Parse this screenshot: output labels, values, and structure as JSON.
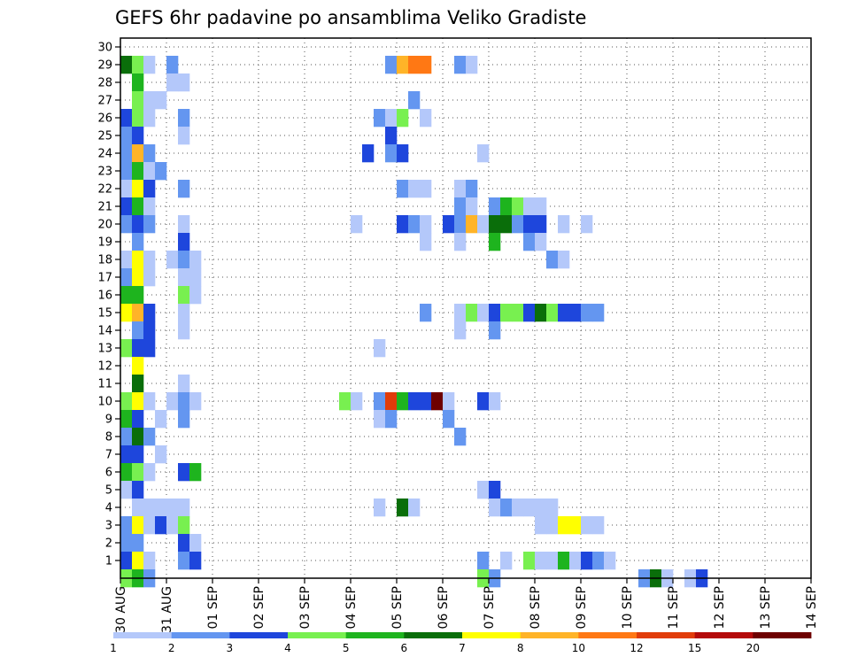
{
  "chart_data": {
    "type": "heatmap",
    "title": "GEFS 6hr padavine po ansamblima Veliko Gradiste",
    "xlabel": "",
    "ylabel": "",
    "x_tick_labels": [
      "30 AUG",
      "31 AUG",
      "01 SEP",
      "02 SEP",
      "03 SEP",
      "04 SEP",
      "05 SEP",
      "06 SEP",
      "07 SEP",
      "08 SEP",
      "09 SEP",
      "10 SEP",
      "11 SEP",
      "12 SEP",
      "13 SEP",
      "14 SEP"
    ],
    "y_range": [
      0,
      30
    ],
    "y_ticks": [
      1,
      2,
      3,
      4,
      5,
      6,
      7,
      8,
      9,
      10,
      11,
      12,
      13,
      14,
      15,
      16,
      17,
      18,
      19,
      20,
      21,
      22,
      23,
      24,
      25,
      26,
      27,
      28,
      29,
      30
    ],
    "x_steps_total": 60,
    "steps_per_day": 4,
    "grid": true,
    "colorbar": {
      "labels": [
        "1",
        "2",
        "3",
        "4",
        "5",
        "6",
        "7",
        "8",
        "10",
        "12",
        "15",
        "20"
      ],
      "colors": [
        "#b4c8fa",
        "#6496f0",
        "#1e46dc",
        "#78f050",
        "#1eb41e",
        "#0a6e0a",
        "#ffff00",
        "#ffb428",
        "#ff7814",
        "#e13c0a",
        "#b40a0a",
        "#6e0000"
      ]
    },
    "cells": [
      [
        0,
        29,
        5
      ],
      [
        1,
        29,
        3
      ],
      [
        2,
        29,
        0
      ],
      [
        4,
        29,
        1
      ],
      [
        23,
        29,
        1
      ],
      [
        24,
        29,
        7
      ],
      [
        25,
        29,
        8
      ],
      [
        26,
        29,
        8
      ],
      [
        29,
        29,
        1
      ],
      [
        30,
        29,
        0
      ],
      [
        1,
        28,
        4
      ],
      [
        4,
        28,
        0
      ],
      [
        5,
        28,
        0
      ],
      [
        1,
        27,
        3
      ],
      [
        2,
        27,
        0
      ],
      [
        3,
        27,
        0
      ],
      [
        25,
        27,
        1
      ],
      [
        0,
        26,
        2
      ],
      [
        1,
        26,
        3
      ],
      [
        2,
        26,
        0
      ],
      [
        5,
        26,
        1
      ],
      [
        22,
        26,
        1
      ],
      [
        23,
        26,
        0
      ],
      [
        24,
        26,
        3
      ],
      [
        26,
        26,
        0
      ],
      [
        0,
        25,
        1
      ],
      [
        1,
        25,
        2
      ],
      [
        5,
        25,
        0
      ],
      [
        23,
        25,
        2
      ],
      [
        0,
        24,
        1
      ],
      [
        1,
        24,
        7
      ],
      [
        2,
        24,
        1
      ],
      [
        21,
        24,
        2
      ],
      [
        23,
        24,
        1
      ],
      [
        24,
        24,
        2
      ],
      [
        31,
        24,
        0
      ],
      [
        0,
        23,
        1
      ],
      [
        1,
        23,
        4
      ],
      [
        2,
        23,
        0
      ],
      [
        3,
        23,
        1
      ],
      [
        0,
        22,
        0
      ],
      [
        1,
        22,
        6
      ],
      [
        2,
        22,
        2
      ],
      [
        5,
        22,
        1
      ],
      [
        26,
        22,
        0
      ],
      [
        24,
        22,
        1
      ],
      [
        25,
        22,
        0
      ],
      [
        29,
        22,
        0
      ],
      [
        30,
        22,
        1
      ],
      [
        0,
        21,
        2
      ],
      [
        1,
        21,
        4
      ],
      [
        2,
        21,
        0
      ],
      [
        29,
        21,
        1
      ],
      [
        30,
        21,
        0
      ],
      [
        32,
        21,
        1
      ],
      [
        33,
        21,
        4
      ],
      [
        34,
        21,
        3
      ],
      [
        35,
        21,
        0
      ],
      [
        36,
        21,
        0
      ],
      [
        0,
        20,
        1
      ],
      [
        1,
        20,
        2
      ],
      [
        2,
        20,
        1
      ],
      [
        5,
        20,
        0
      ],
      [
        20,
        20,
        0
      ],
      [
        24,
        20,
        2
      ],
      [
        25,
        20,
        1
      ],
      [
        26,
        20,
        0
      ],
      [
        28,
        20,
        2
      ],
      [
        29,
        20,
        1
      ],
      [
        30,
        20,
        7
      ],
      [
        31,
        20,
        0
      ],
      [
        32,
        20,
        5
      ],
      [
        33,
        20,
        5
      ],
      [
        34,
        20,
        1
      ],
      [
        35,
        20,
        2
      ],
      [
        36,
        20,
        2
      ],
      [
        38,
        20,
        0
      ],
      [
        40,
        20,
        0
      ],
      [
        1,
        19,
        1
      ],
      [
        5,
        19,
        2
      ],
      [
        26,
        19,
        0
      ],
      [
        29,
        19,
        0
      ],
      [
        32,
        19,
        4
      ],
      [
        35,
        19,
        1
      ],
      [
        36,
        19,
        0
      ],
      [
        0,
        18,
        0
      ],
      [
        1,
        18,
        6
      ],
      [
        2,
        18,
        0
      ],
      [
        4,
        18,
        0
      ],
      [
        5,
        18,
        1
      ],
      [
        6,
        18,
        0
      ],
      [
        37,
        18,
        1
      ],
      [
        38,
        18,
        0
      ],
      [
        0,
        17,
        1
      ],
      [
        1,
        17,
        6
      ],
      [
        2,
        17,
        0
      ],
      [
        5,
        17,
        0
      ],
      [
        6,
        17,
        0
      ],
      [
        0,
        16,
        4
      ],
      [
        1,
        16,
        4
      ],
      [
        5,
        16,
        3
      ],
      [
        6,
        16,
        0
      ],
      [
        0,
        15,
        6
      ],
      [
        1,
        15,
        7
      ],
      [
        2,
        15,
        2
      ],
      [
        5,
        15,
        0
      ],
      [
        26,
        15,
        1
      ],
      [
        29,
        15,
        0
      ],
      [
        30,
        15,
        3
      ],
      [
        31,
        15,
        0
      ],
      [
        32,
        15,
        2
      ],
      [
        33,
        15,
        3
      ],
      [
        34,
        15,
        3
      ],
      [
        35,
        15,
        2
      ],
      [
        36,
        15,
        5
      ],
      [
        37,
        15,
        3
      ],
      [
        38,
        15,
        2
      ],
      [
        39,
        15,
        2
      ],
      [
        40,
        15,
        1
      ],
      [
        41,
        15,
        1
      ],
      [
        1,
        14,
        1
      ],
      [
        2,
        14,
        2
      ],
      [
        5,
        14,
        0
      ],
      [
        29,
        14,
        0
      ],
      [
        32,
        14,
        1
      ],
      [
        0,
        13,
        3
      ],
      [
        1,
        13,
        2
      ],
      [
        2,
        13,
        2
      ],
      [
        22,
        13,
        0
      ],
      [
        1,
        12,
        6
      ],
      [
        1,
        11,
        5
      ],
      [
        5,
        11,
        0
      ],
      [
        0,
        10,
        3
      ],
      [
        1,
        10,
        6
      ],
      [
        2,
        10,
        0
      ],
      [
        4,
        10,
        0
      ],
      [
        5,
        10,
        1
      ],
      [
        6,
        10,
        0
      ],
      [
        19,
        10,
        3
      ],
      [
        20,
        10,
        0
      ],
      [
        22,
        10,
        1
      ],
      [
        23,
        10,
        9
      ],
      [
        24,
        10,
        4
      ],
      [
        25,
        10,
        2
      ],
      [
        26,
        10,
        2
      ],
      [
        27,
        10,
        11
      ],
      [
        28,
        10,
        0
      ],
      [
        31,
        10,
        2
      ],
      [
        32,
        10,
        0
      ],
      [
        0,
        9,
        4
      ],
      [
        1,
        9,
        2
      ],
      [
        3,
        9,
        0
      ],
      [
        5,
        9,
        1
      ],
      [
        22,
        9,
        0
      ],
      [
        23,
        9,
        1
      ],
      [
        28,
        9,
        1
      ],
      [
        0,
        8,
        1
      ],
      [
        1,
        8,
        5
      ],
      [
        2,
        8,
        1
      ],
      [
        29,
        8,
        1
      ],
      [
        0,
        7,
        2
      ],
      [
        1,
        7,
        2
      ],
      [
        3,
        7,
        0
      ],
      [
        0,
        6,
        4
      ],
      [
        1,
        6,
        3
      ],
      [
        2,
        6,
        0
      ],
      [
        5,
        6,
        2
      ],
      [
        6,
        6,
        4
      ],
      [
        0,
        5,
        0
      ],
      [
        1,
        5,
        2
      ],
      [
        31,
        5,
        0
      ],
      [
        32,
        5,
        2
      ],
      [
        1,
        4,
        0
      ],
      [
        2,
        4,
        0
      ],
      [
        3,
        4,
        0
      ],
      [
        4,
        4,
        0
      ],
      [
        5,
        4,
        0
      ],
      [
        22,
        4,
        0
      ],
      [
        24,
        4,
        5
      ],
      [
        25,
        4,
        0
      ],
      [
        32,
        4,
        0
      ],
      [
        33,
        4,
        1
      ],
      [
        34,
        4,
        0
      ],
      [
        35,
        4,
        0
      ],
      [
        36,
        4,
        0
      ],
      [
        37,
        4,
        0
      ],
      [
        0,
        3,
        1
      ],
      [
        1,
        3,
        6
      ],
      [
        2,
        3,
        0
      ],
      [
        3,
        3,
        2
      ],
      [
        4,
        3,
        0
      ],
      [
        5,
        3,
        3
      ],
      [
        36,
        3,
        0
      ],
      [
        37,
        3,
        0
      ],
      [
        38,
        3,
        6
      ],
      [
        39,
        3,
        6
      ],
      [
        40,
        3,
        0
      ],
      [
        41,
        3,
        0
      ],
      [
        0,
        2,
        1
      ],
      [
        1,
        2,
        1
      ],
      [
        5,
        2,
        2
      ],
      [
        6,
        2,
        0
      ],
      [
        0,
        1,
        2
      ],
      [
        1,
        1,
        6
      ],
      [
        2,
        1,
        0
      ],
      [
        5,
        1,
        1
      ],
      [
        6,
        1,
        2
      ],
      [
        31,
        1,
        1
      ],
      [
        33,
        1,
        0
      ],
      [
        35,
        1,
        3
      ],
      [
        36,
        1,
        0
      ],
      [
        37,
        1,
        0
      ],
      [
        38,
        1,
        4
      ],
      [
        39,
        1,
        0
      ],
      [
        40,
        1,
        2
      ],
      [
        41,
        1,
        1
      ],
      [
        42,
        1,
        0
      ],
      [
        0,
        0,
        3
      ],
      [
        1,
        0,
        4
      ],
      [
        2,
        0,
        1
      ],
      [
        31,
        0,
        3
      ],
      [
        32,
        0,
        1
      ],
      [
        45,
        0,
        1
      ],
      [
        46,
        0,
        5
      ],
      [
        47,
        0,
        0
      ],
      [
        49,
        0,
        0
      ],
      [
        50,
        0,
        2
      ]
    ]
  }
}
